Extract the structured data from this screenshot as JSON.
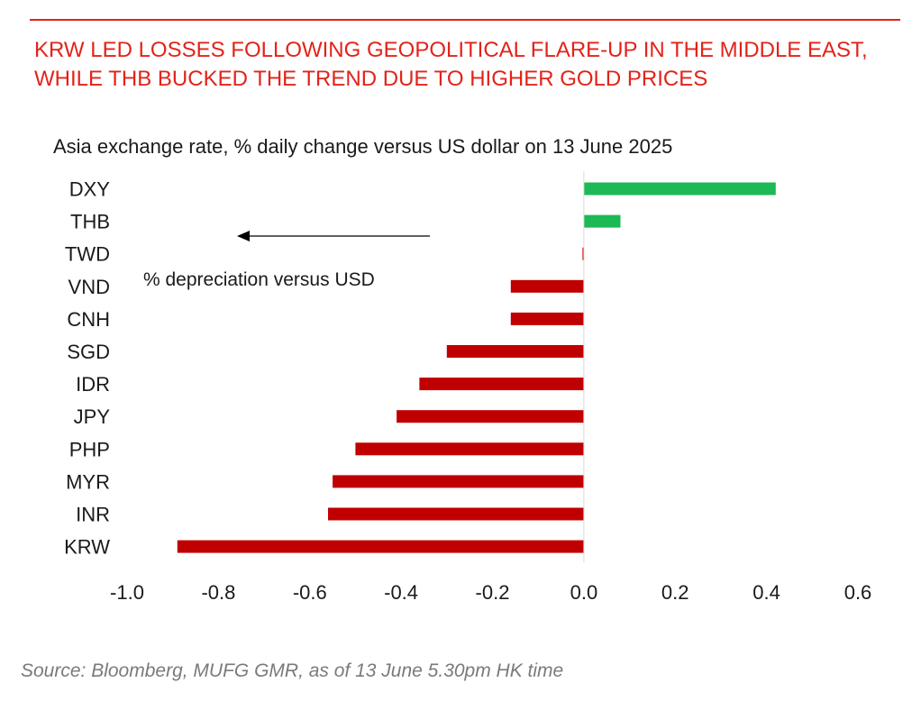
{
  "headline": "KRW LED LOSSES FOLLOWING GEOPOLITICAL FLARE-UP IN THE MIDDLE EAST, WHILE THB BUCKED THE TREND DUE TO HIGHER GOLD PRICES",
  "source": "Source: Bloomberg, MUFG GMR, as of 13 June 5.30pm HK time",
  "colors": {
    "headline": "#e2231a",
    "positive": "#1db954",
    "negative": "#c00000",
    "axis": "#d9d9d9"
  },
  "chart_data": {
    "type": "bar",
    "orientation": "horizontal",
    "title": "Asia exchange rate, % daily change versus US dollar on 13 June 2025",
    "categories": [
      "DXY",
      "THB",
      "TWD",
      "VND",
      "CNH",
      "SGD",
      "IDR",
      "JPY",
      "PHP",
      "MYR",
      "INR",
      "KRW"
    ],
    "values": [
      0.42,
      0.08,
      -0.003,
      -0.16,
      -0.16,
      -0.3,
      -0.36,
      -0.41,
      -0.5,
      -0.55,
      -0.56,
      -0.89
    ],
    "xlim": [
      -1.0,
      0.6
    ],
    "xticks": [
      "-1.0",
      "-0.8",
      "-0.6",
      "-0.4",
      "-0.2",
      "0.0",
      "0.2",
      "0.4",
      "0.6"
    ],
    "xtick_values": [
      -1.0,
      -0.8,
      -0.6,
      -0.4,
      -0.2,
      0.0,
      0.2,
      0.4,
      0.6
    ],
    "annotation": "% depreciation versus USD",
    "grid": false,
    "legend": "none"
  }
}
